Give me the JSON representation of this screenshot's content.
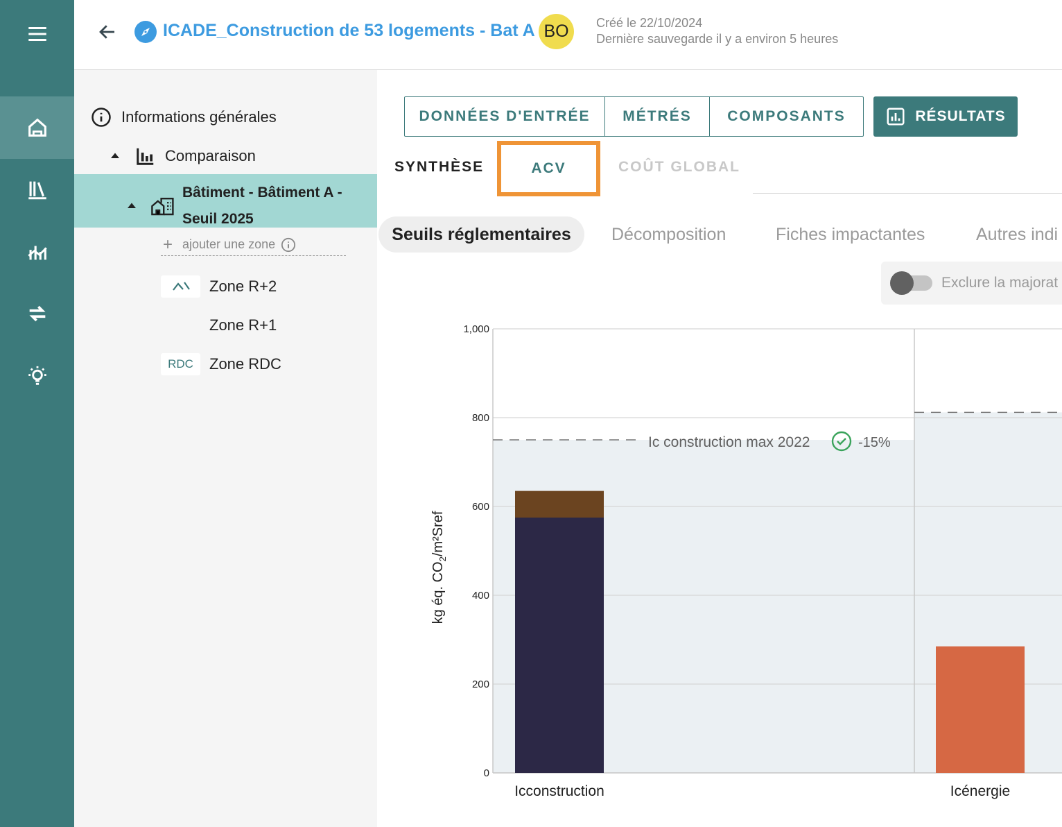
{
  "header": {
    "project_title": "ICADE_Construction de 53 logements - Bat A",
    "avatar_initials": "BO",
    "created": "Créé le 22/10/2024",
    "last_saved": "Dernière sauvegarde il y a environ 5 heures"
  },
  "rail": {
    "icons": [
      "menu-icon",
      "home-icon",
      "library-icon",
      "analytics-icon",
      "swap-icon",
      "lightbulb-icon"
    ]
  },
  "tree": {
    "general_info": "Informations générales",
    "comparison": "Comparaison",
    "building_line1": "Bâtiment - Bâtiment A -",
    "building_line2": "Seuil 2025",
    "add_zone": "ajouter une zone",
    "zones": [
      {
        "tag": "",
        "label": "Zone R+2"
      },
      {
        "tag": "",
        "label": "Zone R+1"
      },
      {
        "tag": "RDC",
        "label": "Zone RDC"
      }
    ]
  },
  "main_tabs": [
    "DONNÉES D'ENTRÉE",
    "MÉTRÉS",
    "COMPOSANTS"
  ],
  "results_button": "RÉSULTATS",
  "sub_tabs": {
    "synthese": "SYNTHÈSE",
    "acv": "ACV",
    "cout_global": "COÛT GLOBAL"
  },
  "pills": {
    "active": "Seuils réglementaires",
    "decomposition": "Décomposition",
    "fiches": "Fiches impactantes",
    "autres": "Autres indi"
  },
  "toggle": {
    "label": "Exclure la majorat",
    "checked": false
  },
  "colors": {
    "teal": "#3c7a7b",
    "highlight": "#ef9436",
    "dark_bar": "#2c2846",
    "brown_bar": "#6b4420",
    "orange_bar": "#d66844"
  },
  "chart_data": {
    "type": "bar",
    "ylabel_main": "kg éq. CO",
    "ylabel_sub": "2",
    "ylabel_rest": "/m²Sref",
    "ylim": [
      0,
      1000
    ],
    "yticks": [
      "0",
      "200",
      "400",
      "600",
      "800",
      "1,000"
    ],
    "categories": [
      "Icconstruction",
      "Icénergie"
    ],
    "stacks": [
      [
        {
          "value": 575,
          "color": "#2c2846"
        },
        {
          "value": 60,
          "color": "#6b4420"
        }
      ],
      [
        {
          "value": 285,
          "color": "#d66844"
        }
      ]
    ],
    "thresholds": [
      {
        "value": 750,
        "label": "Ic construction max 2022",
        "status_icon": "check-circle-icon",
        "delta": "-15%"
      },
      {
        "value": 812,
        "label": "",
        "delta": ""
      }
    ]
  }
}
